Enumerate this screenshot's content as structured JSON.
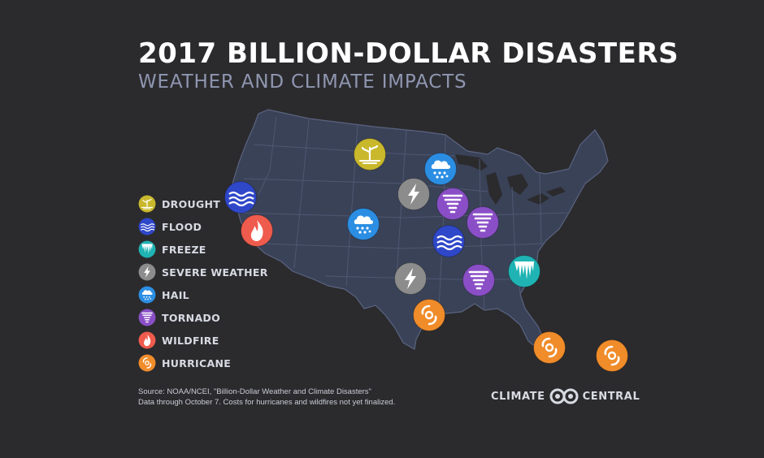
{
  "title": "2017 BILLION-DOLLAR DISASTERS",
  "subtitle": "WEATHER AND CLIMATE IMPACTS",
  "colors": {
    "background": "#2b2b2e",
    "land": "#3a4258",
    "state_lines": "#4f5872",
    "drought": "#c9b82c",
    "flood": "#2f47c9",
    "freeze": "#1fb3b3",
    "severe": "#8c8c8c",
    "hail": "#2b8ee3",
    "tornado": "#8a4fc7",
    "wildfire": "#ef5b4c",
    "hurricane": "#f08c2a"
  },
  "legend": [
    {
      "type": "drought",
      "label": "DROUGHT",
      "icon": "drought-icon"
    },
    {
      "type": "flood",
      "label": "FLOOD",
      "icon": "flood-icon"
    },
    {
      "type": "freeze",
      "label": "FREEZE",
      "icon": "freeze-icon"
    },
    {
      "type": "severe",
      "label": "SEVERE WEATHER",
      "icon": "lightning-icon"
    },
    {
      "type": "hail",
      "label": "HAIL",
      "icon": "hail-icon"
    },
    {
      "type": "tornado",
      "label": "TORNADO",
      "icon": "tornado-icon"
    },
    {
      "type": "wildfire",
      "label": "WILDFIRE",
      "icon": "fire-icon"
    },
    {
      "type": "hurricane",
      "label": "HURRICANE",
      "icon": "hurricane-icon"
    }
  ],
  "events": [
    {
      "type": "drought",
      "region": "Northern Plains"
    },
    {
      "type": "hail",
      "region": "Minnesota"
    },
    {
      "type": "severe",
      "region": "Nebraska"
    },
    {
      "type": "tornado",
      "region": "Iowa"
    },
    {
      "type": "tornado",
      "region": "Indiana"
    },
    {
      "type": "flood",
      "region": "California"
    },
    {
      "type": "wildfire",
      "region": "California"
    },
    {
      "type": "hail",
      "region": "Colorado"
    },
    {
      "type": "flood",
      "region": "Missouri"
    },
    {
      "type": "freeze",
      "region": "Southeast"
    },
    {
      "type": "severe",
      "region": "Texas"
    },
    {
      "type": "tornado",
      "region": "Alabama"
    },
    {
      "type": "hurricane",
      "region": "Texas"
    },
    {
      "type": "hurricane",
      "region": "Florida"
    },
    {
      "type": "hurricane",
      "region": "Puerto Rico"
    }
  ],
  "source_lines": [
    "Source: NOAA/NCEI, \"Billion-Dollar Weather and Climate Disasters\"",
    "Data through October 7. Costs for hurricanes and wildfires not yet finalized."
  ],
  "brand": {
    "left": "CLIMATE",
    "right": "CENTRAL",
    "icon": "climate-central-logo-icon"
  }
}
